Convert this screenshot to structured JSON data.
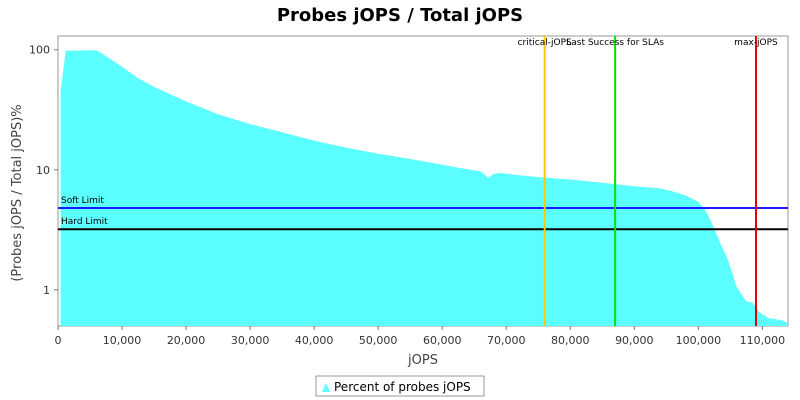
{
  "chart_data": {
    "type": "area",
    "title": "Probes jOPS / Total jOPS",
    "xlabel": "jOPS",
    "ylabel": "(Probes jOPS / Total jOPS)%",
    "y_scale": "log",
    "xlim": [
      0,
      114000
    ],
    "ylim": [
      0.5,
      130
    ],
    "x_ticks": [
      0,
      10000,
      20000,
      30000,
      40000,
      50000,
      60000,
      70000,
      80000,
      90000,
      100000,
      110000
    ],
    "x_tick_labels": [
      "0",
      "10,000",
      "20,000",
      "30,000",
      "40,000",
      "50,000",
      "60,000",
      "70,000",
      "80,000",
      "90,000",
      "100,000",
      "110,000"
    ],
    "y_ticks": [
      1,
      10,
      100
    ],
    "y_tick_labels": [
      "1",
      "10",
      "100"
    ],
    "grid": false,
    "legend_position": "bottom",
    "series": [
      {
        "name": "Percent of probes jOPS",
        "color": "#5cffff",
        "x": [
          400,
          1200,
          6000,
          7000,
          8000,
          10000,
          12500,
          15000,
          20000,
          25000,
          30000,
          35000,
          40000,
          45000,
          50000,
          55000,
          60000,
          63000,
          66000,
          67200,
          68000,
          69000,
          72000,
          76000,
          80000,
          85000,
          90000,
          94000,
          96000,
          98000,
          100000,
          101000,
          102000,
          103500,
          104500,
          106000,
          107500,
          108500,
          109500,
          111000,
          113000,
          114000
        ],
        "y": [
          45,
          98,
          99,
          92,
          85,
          72,
          58,
          49,
          37,
          29,
          24,
          20.5,
          17.5,
          15.3,
          13.6,
          12.3,
          11,
          10.3,
          9.7,
          8.6,
          9.2,
          9.4,
          9,
          8.6,
          8.3,
          7.8,
          7.3,
          7.0,
          6.6,
          6.1,
          5.4,
          4.7,
          3.7,
          2.4,
          1.85,
          1.05,
          0.8,
          0.78,
          0.65,
          0.58,
          0.56,
          0.53
        ]
      }
    ],
    "reference_lines": [
      {
        "label": "Soft Limit",
        "axis": "y",
        "value": 4.8,
        "color": "#1a1aff"
      },
      {
        "label": "Hard Limit",
        "axis": "y",
        "value": 3.2,
        "color": "#000000"
      },
      {
        "label": "critical-jOPS",
        "axis": "x",
        "value": 76000,
        "color": "#ffc800"
      },
      {
        "label": "Last Success for SLAs",
        "axis": "x",
        "value": 87000,
        "color": "#00e600"
      },
      {
        "label": "max-jOPS",
        "axis": "x",
        "value": 109000,
        "color": "#e60000"
      }
    ]
  }
}
